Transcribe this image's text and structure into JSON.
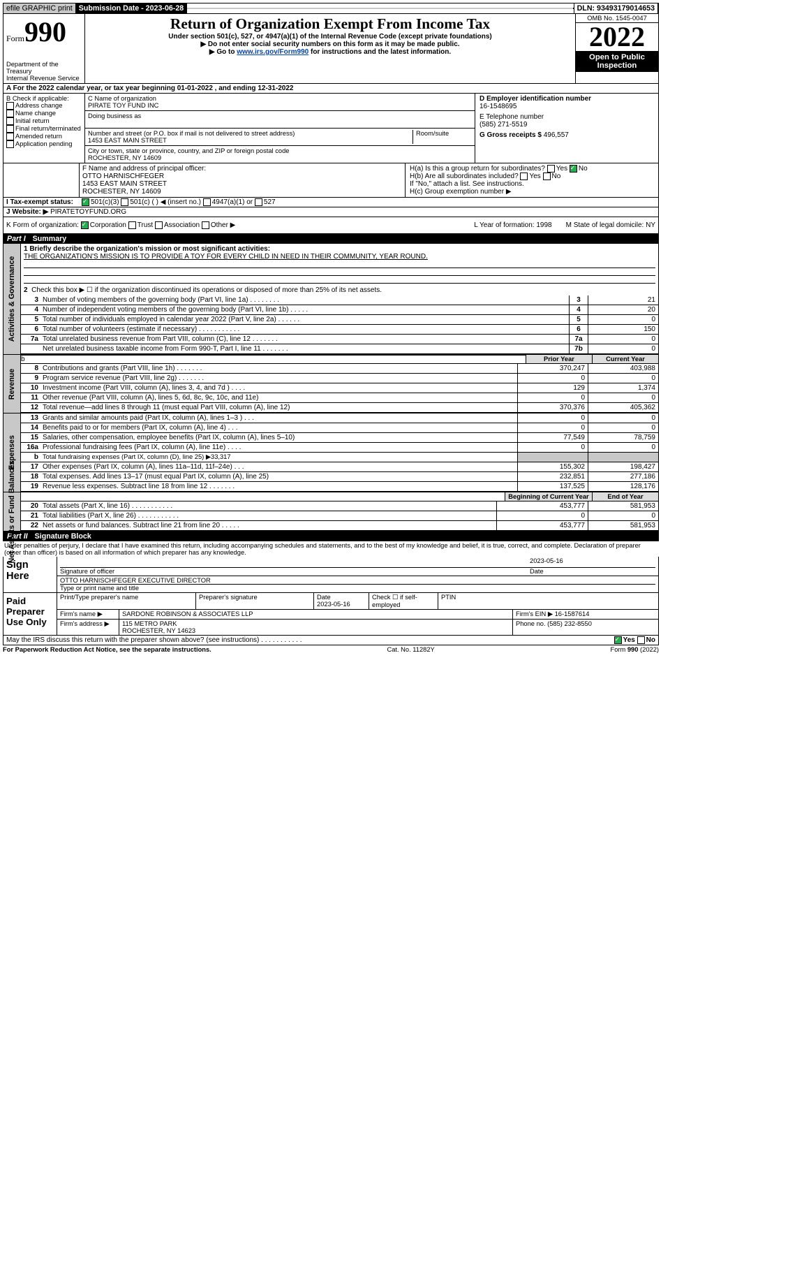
{
  "top": {
    "efile": "efile GRAPHIC print",
    "sub_lbl": "Submission Date - 2023-06-28",
    "dln": "DLN: 93493179014653"
  },
  "hdr": {
    "form": "Form",
    "num": "990",
    "dept": "Department of the Treasury",
    "irs": "Internal Revenue Service",
    "title": "Return of Organization Exempt From Income Tax",
    "sub1": "Under section 501(c), 527, or 4947(a)(1) of the Internal Revenue Code (except private foundations)",
    "sub2": "▶ Do not enter social security numbers on this form as it may be made public.",
    "sub3a": "▶ Go to ",
    "sub3b": "www.irs.gov/Form990",
    "sub3c": " for instructions and the latest information.",
    "omb": "OMB No. 1545-0047",
    "year": "2022",
    "open": "Open to Public Inspection"
  },
  "A": {
    "text": "A For the 2022 calendar year, or tax year beginning 01-01-2022    , and ending 12-31-2022"
  },
  "B": {
    "lbl": "B Check if applicable:",
    "opts": [
      "Address change",
      "Name change",
      "Initial return",
      "Final return/terminated",
      "Amended return",
      "Application pending"
    ]
  },
  "C": {
    "name_lbl": "C Name of organization",
    "name": "PIRATE TOY FUND INC",
    "dba_lbl": "Doing business as",
    "addr_lbl": "Number and street (or P.O. box if mail is not delivered to street address)",
    "room_lbl": "Room/suite",
    "addr": "1453 EAST MAIN STREET",
    "city_lbl": "City or town, state or province, country, and ZIP or foreign postal code",
    "city": "ROCHESTER, NY  14609"
  },
  "D": {
    "lbl": "D Employer identification number",
    "val": "16-1548695"
  },
  "E": {
    "lbl": "E Telephone number",
    "val": "(585) 271-5519"
  },
  "G": {
    "lbl": "G Gross receipts $",
    "val": "496,557"
  },
  "F": {
    "lbl": "F Name and address of principal officer:",
    "l1": "OTTO HARNISCHFEGER",
    "l2": "1453 EAST MAIN STREET",
    "l3": "ROCHESTER, NY  14609"
  },
  "H": {
    "a": "H(a)  Is this a group return for subordinates?",
    "b": "H(b)  Are all subordinates included?",
    "note": "If \"No,\" attach a list. See instructions.",
    "c": "H(c)  Group exemption number ▶",
    "yes": "Yes",
    "no": "No"
  },
  "I": {
    "lbl": "I  Tax-exempt status:",
    "opts": [
      "501(c)(3)",
      "501(c) (  ) ◀ (insert no.)",
      "4947(a)(1) or",
      "527"
    ]
  },
  "J": {
    "lbl": "J  Website: ▶",
    "val": "PIRATETOYFUND.ORG"
  },
  "K": {
    "lbl": "K Form of organization:",
    "opts": [
      "Corporation",
      "Trust",
      "Association",
      "Other ▶"
    ]
  },
  "L": {
    "lbl": "L Year of formation: 1998"
  },
  "M": {
    "lbl": "M State of legal domicile: NY"
  },
  "partI": {
    "title": "Part I",
    "sub": "Summary",
    "gov_lbl": "Activities & Governance",
    "rev_lbl": "Revenue",
    "exp_lbl": "Expenses",
    "net_lbl": "Net Assets or Fund Balances",
    "q1": "1  Briefly describe the organization's mission or most significant activities:",
    "mission": "THE ORGANIZATION'S MISSION IS TO PROVIDE A TOY FOR EVERY CHILD IN NEED IN THEIR COMMUNITY, YEAR ROUND.",
    "q2": "Check this box ▶ ☐  if the organization discontinued its operations or disposed of more than 25% of its net assets.",
    "lines_gov": [
      {
        "n": "3",
        "d": "Number of voting members of the governing body (Part VI, line 1a)  .    .    .    .    .    .    .    .",
        "b": "3",
        "v": "21"
      },
      {
        "n": "4",
        "d": "Number of independent voting members of the governing body (Part VI, line 1b)  .    .    .    .    .",
        "b": "4",
        "v": "20"
      },
      {
        "n": "5",
        "d": "Total number of individuals employed in calendar year 2022 (Part V, line 2a)  .    .    .    .    .    .",
        "b": "5",
        "v": "0"
      },
      {
        "n": "6",
        "d": "Total number of volunteers (estimate if necessary)  .    .    .    .    .    .    .    .    .    .    .",
        "b": "6",
        "v": "150"
      },
      {
        "n": "7a",
        "d": "Total unrelated business revenue from Part VIII, column (C), line 12  .    .    .    .    .    .    .",
        "b": "7a",
        "v": "0"
      },
      {
        "n": "",
        "d": "Net unrelated business taxable income from Form 990-T, Part I, line 11  .    .    .    .    .    .    .",
        "b": "7b",
        "v": "0"
      }
    ],
    "prior": "Prior Year",
    "current": "Current Year",
    "beg": "Beginning of Current Year",
    "end": "End of Year",
    "lines_rev": [
      {
        "n": "8",
        "d": "Contributions and grants (Part VIII, line 1h)  .    .    .    .    .    .    .",
        "p": "370,247",
        "v": "403,988"
      },
      {
        "n": "9",
        "d": "Program service revenue (Part VIII, line 2g)  .    .    .    .    .    .    .",
        "p": "0",
        "v": "0"
      },
      {
        "n": "10",
        "d": "Investment income (Part VIII, column (A), lines 3, 4, and 7d )  .    .    .    .",
        "p": "129",
        "v": "1,374"
      },
      {
        "n": "11",
        "d": "Other revenue (Part VIII, column (A), lines 5, 6d, 8c, 9c, 10c, and 11e)",
        "p": "0",
        "v": "0"
      },
      {
        "n": "12",
        "d": "Total revenue—add lines 8 through 11 (must equal Part VIII, column (A), line 12)",
        "p": "370,376",
        "v": "405,362"
      }
    ],
    "lines_exp": [
      {
        "n": "13",
        "d": "Grants and similar amounts paid (Part IX, column (A), lines 1–3 )  .    .    .",
        "p": "0",
        "v": "0"
      },
      {
        "n": "14",
        "d": "Benefits paid to or for members (Part IX, column (A), line 4)  .    .    .",
        "p": "0",
        "v": "0"
      },
      {
        "n": "15",
        "d": "Salaries, other compensation, employee benefits (Part IX, column (A), lines 5–10)",
        "p": "77,549",
        "v": "78,759"
      },
      {
        "n": "16a",
        "d": "Professional fundraising fees (Part IX, column (A), line 11e)  .    .    .    .",
        "p": "0",
        "v": "0"
      },
      {
        "n": "b",
        "d": "Total fundraising expenses (Part IX, column (D), line 25) ▶33,317",
        "grey": true
      },
      {
        "n": "17",
        "d": "Other expenses (Part IX, column (A), lines 11a–11d, 11f–24e)  .    .    .",
        "p": "155,302",
        "v": "198,427"
      },
      {
        "n": "18",
        "d": "Total expenses. Add lines 13–17 (must equal Part IX, column (A), line 25)",
        "p": "232,851",
        "v": "277,186"
      },
      {
        "n": "19",
        "d": "Revenue less expenses. Subtract line 18 from line 12  .    .    .    .    .    .    .",
        "p": "137,525",
        "v": "128,176"
      }
    ],
    "lines_net": [
      {
        "n": "20",
        "d": "Total assets (Part X, line 16)  .    .    .    .    .    .    .    .    .    .    .",
        "p": "453,777",
        "v": "581,953"
      },
      {
        "n": "21",
        "d": "Total liabilities (Part X, line 26)  .    .    .    .    .    .    .    .    .    .    .",
        "p": "0",
        "v": "0"
      },
      {
        "n": "22",
        "d": "Net assets or fund balances. Subtract line 21 from line 20  .    .    .    .    .",
        "p": "453,777",
        "v": "581,953"
      }
    ]
  },
  "partII": {
    "title": "Part II",
    "sub": "Signature Block",
    "decl": "Under penalties of perjury, I declare that I have examined this return, including accompanying schedules and statements, and to the best of my knowledge and belief, it is true, correct, and complete. Declaration of preparer (other than officer) is based on all information of which preparer has any knowledge.",
    "sign": "Sign Here",
    "sig_off": "Signature of officer",
    "date": "Date",
    "dval": "2023-05-16",
    "name": "OTTO HARNISCHFEGER  EXECUTIVE DIRECTOR",
    "name_lbl": "Type or print name and title",
    "paid": "Paid Preparer Use Only",
    "prep_name": "Print/Type preparer's name",
    "prep_sig": "Preparer's signature",
    "prep_date": "Date",
    "prep_dval": "2023-05-16",
    "check": "Check ☐ if self-employed",
    "ptin": "PTIN",
    "firm_name_lbl": "Firm's name  ▶",
    "firm_name": "SARDONE ROBINSON & ASSOCIATES LLP",
    "firm_ein_lbl": "Firm's EIN ▶",
    "firm_ein": "16-1587614",
    "firm_addr_lbl": "Firm's address ▶",
    "firm_addr": "115 METRO PARK",
    "firm_city": "ROCHESTER, NY  14623",
    "phone_lbl": "Phone no.",
    "phone": "(585) 232-8550",
    "discuss": "May the IRS discuss this return with the preparer shown above? (see instructions)  .    .    .    .    .    .    .    .    .    .    ."
  },
  "foot": {
    "l": "For Paperwork Reduction Act Notice, see the separate instructions.",
    "m": "Cat. No. 11282Y",
    "r": "Form 990 (2022)"
  },
  "colors": {
    "ink": "#000000",
    "bg": "#ffffff",
    "link": "#0645ad",
    "grey": "#c8c8c8",
    "check": "#22b14c"
  }
}
